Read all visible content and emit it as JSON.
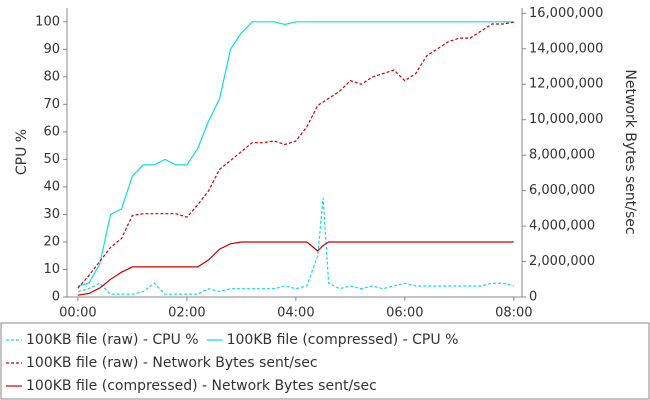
{
  "chart_data": {
    "type": "line",
    "y_label": "CPU %",
    "y2_label": "Network Bytes sent/sec",
    "x": [
      0,
      0.2,
      0.4,
      0.6,
      0.8,
      1.0,
      1.2,
      1.4,
      1.6,
      1.8,
      2.0,
      2.2,
      2.4,
      2.6,
      2.8,
      3.0,
      3.2,
      3.4,
      3.6,
      3.8,
      4.0,
      4.2,
      4.4,
      4.5,
      4.6,
      4.8,
      5.0,
      5.2,
      5.4,
      5.6,
      5.8,
      6.0,
      6.2,
      6.4,
      6.6,
      6.8,
      7.0,
      7.2,
      7.4,
      7.6,
      7.8,
      8.0
    ],
    "xlim": [
      -0.2,
      8.15
    ],
    "xticks": [
      {
        "value": 0,
        "label": "00:00"
      },
      {
        "value": 2,
        "label": "02:00"
      },
      {
        "value": 4,
        "label": "04:00"
      },
      {
        "value": 6,
        "label": "06:00"
      },
      {
        "value": 8,
        "label": "08:00"
      }
    ],
    "ylim": [
      0,
      105
    ],
    "yticks": [
      0,
      10,
      20,
      30,
      40,
      50,
      60,
      70,
      80,
      90,
      100
    ],
    "y2lim": [
      0,
      16300000
    ],
    "y2ticks": [
      0,
      {
        "value": 2000000,
        "label": "2,000,000"
      },
      {
        "value": 4000000,
        "label": "4,000,000"
      },
      {
        "value": 6000000,
        "label": "6,000,000"
      },
      {
        "value": 8000000,
        "label": "8,000,000"
      },
      {
        "value": 10000000,
        "label": "10,000,000"
      },
      {
        "value": 12000000,
        "label": "12,000,000"
      },
      {
        "value": 14000000,
        "label": "14,000,000"
      },
      {
        "value": 16000000,
        "label": "16,000,000"
      }
    ],
    "series": [
      {
        "name": "100KB file (raw) - CPU %",
        "color": "#11dddd",
        "style": "dashed",
        "values": [
          2,
          3,
          5,
          1,
          1,
          1,
          2,
          5,
          1,
          1,
          1,
          1,
          3,
          2,
          3,
          3,
          3,
          3,
          3,
          4,
          3,
          4,
          15,
          36,
          5,
          3,
          4,
          3,
          4,
          3,
          4,
          5,
          4,
          4,
          4,
          4,
          4,
          4,
          4,
          5,
          5,
          4
        ]
      },
      {
        "name": "100KB file (compressed) - CPU %",
        "color": "#11dddd",
        "style": "solid",
        "values": [
          4,
          5,
          12,
          30,
          32,
          44,
          48,
          48,
          50,
          48,
          48,
          54,
          64,
          72,
          90,
          96,
          100,
          100,
          100,
          99,
          100,
          100,
          100,
          100,
          100,
          100,
          100,
          100,
          100,
          100,
          100,
          100,
          100,
          100,
          100,
          100,
          100,
          100,
          100,
          100,
          100,
          100
        ]
      },
      {
        "name": "100KB file (raw) - Network Bytes sent/sec",
        "color": "#cc0000",
        "style": "dashed",
        "axis": "y2",
        "values": [
          500000,
          1200000,
          2000000,
          2800000,
          3300000,
          4600000,
          4700000,
          4700000,
          4700000,
          4700000,
          4500000,
          5200000,
          6000000,
          7200000,
          7700000,
          8200000,
          8700000,
          8700000,
          8800000,
          8600000,
          8800000,
          9600000,
          10800000,
          11000000,
          11200000,
          11600000,
          12200000,
          12000000,
          12400000,
          12600000,
          12800000,
          12200000,
          12600000,
          13600000,
          14000000,
          14400000,
          14600000,
          14600000,
          15000000,
          15400000,
          15400000,
          15500000
        ]
      },
      {
        "name": "100KB file (compressed) - Network Bytes sent/sec",
        "color": "#cc0000",
        "style": "solid",
        "axis": "y2",
        "values": [
          100000,
          200000,
          500000,
          1000000,
          1400000,
          1700000,
          1700000,
          1700000,
          1700000,
          1700000,
          1700000,
          1700000,
          2100000,
          2700000,
          3000000,
          3100000,
          3100000,
          3100000,
          3100000,
          3100000,
          3100000,
          3100000,
          2600000,
          2900000,
          3100000,
          3100000,
          3100000,
          3100000,
          3100000,
          3100000,
          3100000,
          3100000,
          3100000,
          3100000,
          3100000,
          3100000,
          3100000,
          3100000,
          3100000,
          3100000,
          3100000,
          3100000
        ]
      }
    ]
  }
}
